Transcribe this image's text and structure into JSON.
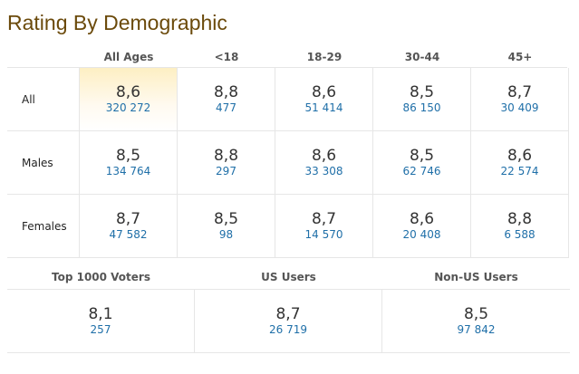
{
  "header": {
    "title": "Rating By Demographic"
  },
  "table": {
    "columns": [
      "All Ages",
      "<18",
      "18-29",
      "30-44",
      "45+"
    ],
    "rows": [
      {
        "label": "All",
        "cells": [
          {
            "rating": "8,6",
            "votes": "320 272"
          },
          {
            "rating": "8,8",
            "votes": "477"
          },
          {
            "rating": "8,6",
            "votes": "51 414"
          },
          {
            "rating": "8,5",
            "votes": "86 150"
          },
          {
            "rating": "8,7",
            "votes": "30 409"
          }
        ]
      },
      {
        "label": "Males",
        "cells": [
          {
            "rating": "8,5",
            "votes": "134 764"
          },
          {
            "rating": "8,8",
            "votes": "297"
          },
          {
            "rating": "8,6",
            "votes": "33 308"
          },
          {
            "rating": "8,5",
            "votes": "62 746"
          },
          {
            "rating": "8,6",
            "votes": "22 574"
          }
        ]
      },
      {
        "label": "Females",
        "cells": [
          {
            "rating": "8,7",
            "votes": "47 582"
          },
          {
            "rating": "8,5",
            "votes": "98"
          },
          {
            "rating": "8,7",
            "votes": "14 570"
          },
          {
            "rating": "8,6",
            "votes": "20 408"
          },
          {
            "rating": "8,8",
            "votes": "6 588"
          }
        ]
      }
    ]
  },
  "summary": {
    "columns": [
      {
        "label": "Top 1000 Voters",
        "rating": "8,1",
        "votes": "257"
      },
      {
        "label": "US Users",
        "rating": "8,7",
        "votes": "26 719"
      },
      {
        "label": "Non-US Users",
        "rating": "8,5",
        "votes": "97 842"
      }
    ]
  }
}
